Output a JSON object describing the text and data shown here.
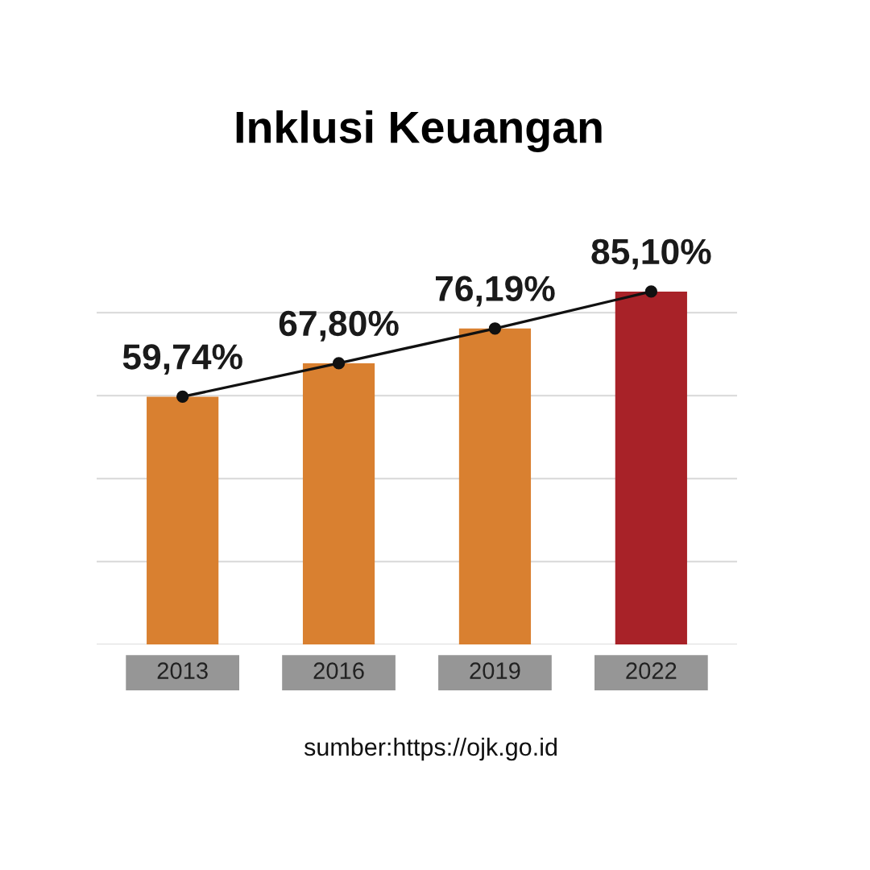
{
  "chart_data": {
    "type": "bar",
    "title": "Inklusi Keuangan",
    "categories": [
      "2013",
      "2016",
      "2019",
      "2022"
    ],
    "series": [
      {
        "colors": [
          "#d98030",
          "#d98030",
          "#d98030",
          "#a82228"
        ],
        "values": [
          59.74,
          67.8,
          76.19,
          85.1
        ],
        "value_labels": [
          "59,74%",
          "67,80%",
          "76,19%",
          "85,10%"
        ]
      },
      {
        "type": "line",
        "color": "#111111",
        "values": [
          59.74,
          67.8,
          76.19,
          85.1
        ]
      }
    ],
    "grid": "y",
    "tick_labels": "x",
    "marker": "circle",
    "line_style": "solid",
    "annotations": [
      "sumber:https://ojk.go.id"
    ]
  }
}
